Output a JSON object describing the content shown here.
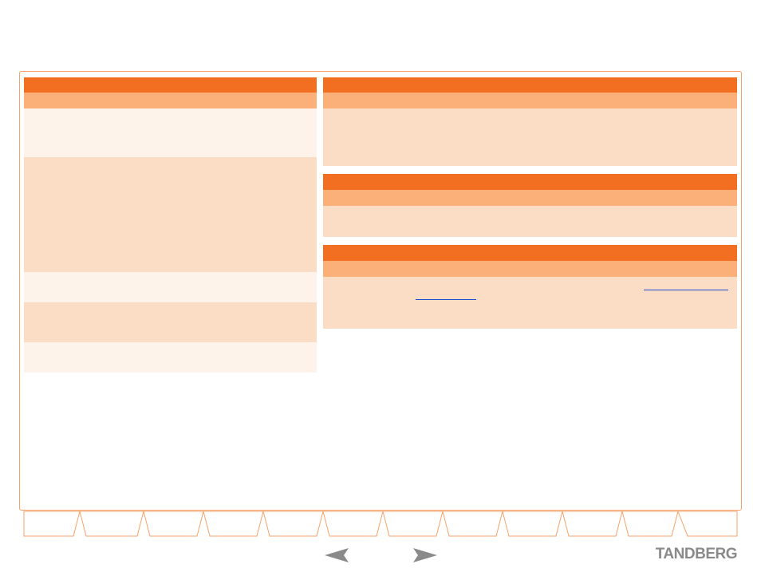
{
  "footer": {
    "logo": "TANDBERG"
  }
}
